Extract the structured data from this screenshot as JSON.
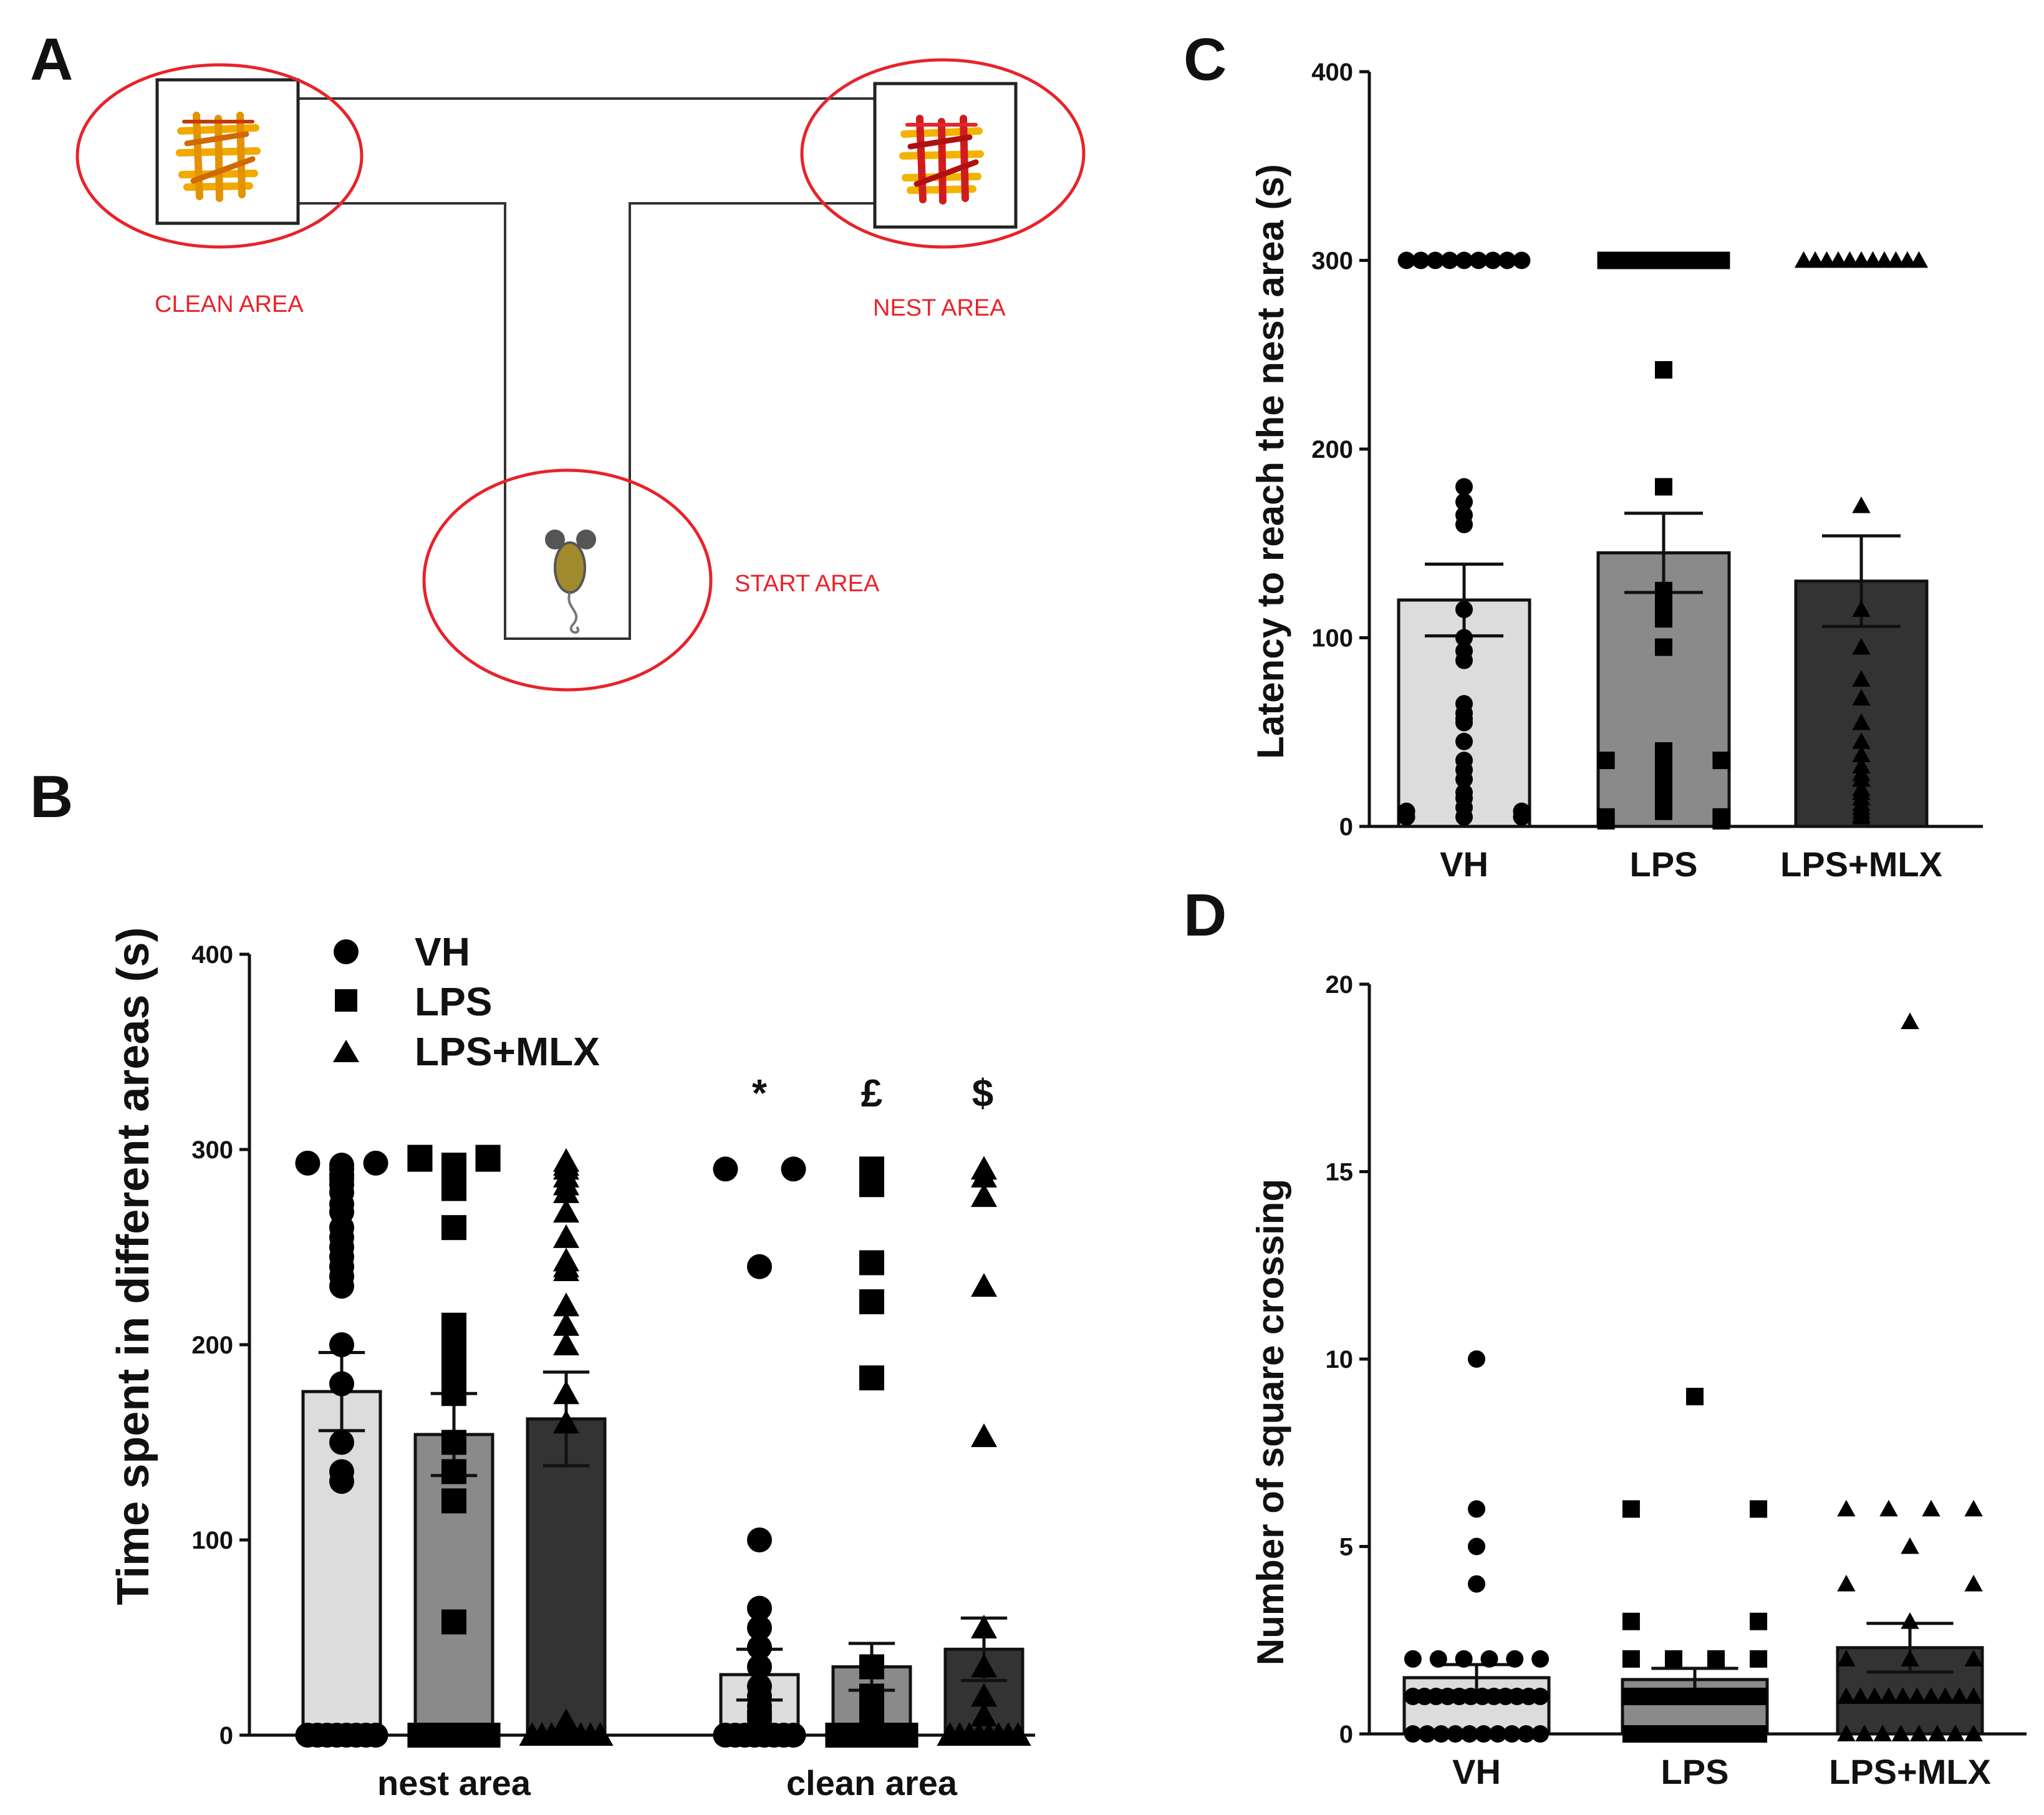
{
  "colors": {
    "VH": "#dcdcdc",
    "LPS": "#8a8a8a",
    "LPS+MLX": "#333333",
    "marker": "#000000",
    "accent": "#e8232a"
  },
  "panel_A": {
    "letter": "A",
    "labels": {
      "clean": "CLEAN AREA",
      "nest": "NEST AREA",
      "start": "START AREA"
    }
  },
  "chart_data": [
    {
      "id": "B",
      "letter": "B",
      "type": "bar",
      "categories": [
        "nest area",
        "clean area"
      ],
      "ylabel": "Time spent in different areas (s)",
      "ylim": [
        0,
        400
      ],
      "yticks": [
        "0",
        "100",
        "200",
        "300",
        "400"
      ],
      "legend": [
        "VH",
        "LPS",
        "LPS+MLX"
      ],
      "significance": [
        "*",
        "£",
        "$"
      ],
      "series": [
        {
          "name": "VH",
          "values": [
            176,
            31
          ],
          "sem": [
            20,
            13
          ],
          "points": [
            [
              0,
              0,
              0,
              0,
              0,
              0,
              0,
              0,
              135,
              130,
              150,
              180,
              200,
              230,
              235,
              240,
              245,
              250,
              255,
              260,
              268,
              272,
              278,
              282,
              285,
              287,
              290,
              292,
              293,
              293
            ],
            [
              0,
              0,
              0,
              0,
              0,
              0,
              0,
              0,
              5,
              8,
              10,
              12,
              15,
              20,
              25,
              35,
              45,
              55,
              65,
              100,
              240,
              290,
              290
            ]
          ]
        },
        {
          "name": "LPS",
          "values": [
            154,
            35
          ],
          "sem": [
            21,
            12
          ],
          "points": [
            [
              0,
              0,
              0,
              0,
              0,
              0,
              0,
              0,
              58,
              120,
              135,
              150,
              175,
              180,
              190,
              195,
              200,
              202,
              210,
              260,
              280,
              282,
              285,
              288,
              290,
              292,
              295,
              295,
              296,
              296
            ],
            [
              0,
              0,
              0,
              0,
              0,
              0,
              0,
              0,
              2,
              5,
              10,
              20,
              35,
              183,
              222,
              242,
              282,
              290
            ]
          ]
        },
        {
          "name": "LPS+MLX",
          "values": [
            162,
            44
          ],
          "sem": [
            24,
            16
          ],
          "points": [
            [
              0,
              0,
              0,
              0,
              0,
              0,
              0,
              0,
              5,
              7,
              160,
              175,
              200,
              210,
              220,
              238,
              240,
              243,
              255,
              268,
              278,
              282,
              286,
              290,
              292,
              294
            ],
            [
              0,
              0,
              0,
              0,
              0,
              0,
              0,
              0,
              10,
              20,
              35,
              55,
              153,
              230,
              276,
              286,
              290
            ]
          ]
        }
      ]
    },
    {
      "id": "C",
      "letter": "C",
      "type": "bar",
      "categories": [
        "VH",
        "LPS",
        "LPS+MLX"
      ],
      "ylabel": "Latency to reach the nest area (s)",
      "ylim": [
        0,
        400
      ],
      "yticks": [
        "0",
        "100",
        "200",
        "300",
        "400"
      ],
      "values": [
        120,
        145,
        130
      ],
      "sem": [
        19,
        21,
        24
      ],
      "points": [
        [
          300,
          300,
          300,
          300,
          300,
          300,
          300,
          300,
          300,
          180,
          172,
          165,
          160,
          115,
          100,
          93,
          88,
          65,
          60,
          55,
          57,
          45,
          35,
          30,
          25,
          18,
          15,
          10,
          8,
          8,
          5,
          5,
          5
        ],
        [
          300,
          300,
          300,
          300,
          300,
          300,
          300,
          300,
          300,
          300,
          300,
          300,
          300,
          300,
          242,
          180,
          125,
          122,
          118,
          110,
          95,
          40,
          38,
          35,
          35,
          30,
          28,
          25,
          20,
          15,
          10,
          8,
          5,
          5,
          3,
          3
        ],
        [
          300,
          300,
          300,
          300,
          300,
          300,
          300,
          300,
          300,
          300,
          300,
          170,
          115,
          95,
          78,
          68,
          55,
          45,
          38,
          32,
          28,
          25,
          20,
          18,
          15,
          12,
          10,
          8,
          6,
          5
        ]
      ]
    },
    {
      "id": "D",
      "letter": "D",
      "type": "bar",
      "categories": [
        "VH",
        "LPS",
        "LPS+MLX"
      ],
      "ylabel": "Number of square crossing",
      "ylim": [
        0,
        20
      ],
      "yticks": [
        "0",
        "5",
        "10",
        "15",
        "20"
      ],
      "values": [
        1.5,
        1.45,
        2.3
      ],
      "sem": [
        0.35,
        0.3,
        0.65
      ],
      "points": [
        [
          10,
          6,
          5,
          4,
          2,
          2,
          2,
          2,
          2,
          2,
          1,
          1,
          1,
          1,
          1,
          1,
          1,
          1,
          1,
          1,
          1,
          1,
          0,
          0,
          0,
          0,
          0,
          0,
          0,
          0,
          0,
          0
        ],
        [
          9,
          6,
          6,
          3,
          3,
          2,
          2,
          2,
          2,
          1,
          1,
          1,
          1,
          1,
          1,
          1,
          1,
          1,
          1,
          1,
          0,
          0,
          0,
          0,
          0,
          0,
          0,
          0,
          0,
          0
        ],
        [
          19,
          6,
          6,
          6,
          6,
          5,
          4,
          4,
          3,
          2,
          2,
          2,
          1,
          1,
          1,
          1,
          1,
          1,
          1,
          1,
          1,
          1,
          0,
          0,
          0,
          0,
          0,
          0,
          0,
          0
        ]
      ]
    }
  ]
}
